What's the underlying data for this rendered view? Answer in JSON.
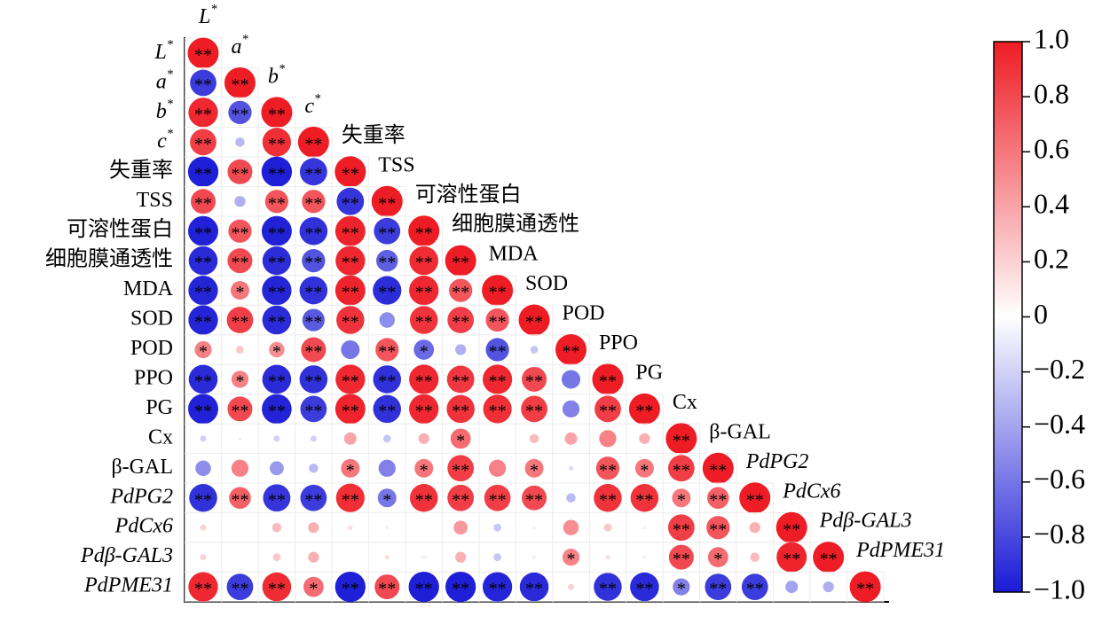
{
  "chart_data": {
    "type": "correlation",
    "labels": [
      "L*",
      "a*",
      "b*",
      "c*",
      "失重率",
      "TSS",
      "可溶性蛋白",
      "细胞膜通透性",
      "MDA",
      "SOD",
      "POD",
      "PPO",
      "PG",
      "Cx",
      "β-GAL",
      "PdPG2",
      "PdCx6",
      "Pdβ-GAL3",
      "PdPME31"
    ],
    "matrix": [
      [
        1
      ],
      [
        -0.85,
        1
      ],
      [
        0.95,
        -0.75,
        1
      ],
      [
        0.85,
        -0.3,
        0.92,
        1
      ],
      [
        -0.98,
        0.8,
        -0.98,
        -0.88,
        1
      ],
      [
        0.8,
        -0.35,
        0.75,
        0.75,
        -0.88,
        1
      ],
      [
        -0.97,
        0.75,
        -0.97,
        -0.9,
        0.97,
        -0.85,
        1
      ],
      [
        -0.93,
        0.8,
        -0.92,
        -0.75,
        0.95,
        -0.7,
        0.93,
        1
      ],
      [
        -0.95,
        0.6,
        -0.95,
        -0.9,
        0.97,
        -0.92,
        0.95,
        0.75,
        1
      ],
      [
        -0.95,
        0.85,
        -0.93,
        -0.72,
        0.9,
        -0.5,
        0.9,
        0.85,
        0.75,
        1
      ],
      [
        0.55,
        0.25,
        0.5,
        0.8,
        -0.6,
        0.75,
        -0.65,
        -0.35,
        -0.75,
        -0.25,
        1
      ],
      [
        -0.93,
        0.55,
        -0.93,
        -0.9,
        0.95,
        -0.9,
        0.95,
        0.88,
        0.95,
        0.8,
        -0.6,
        1
      ],
      [
        -0.97,
        0.8,
        -0.96,
        -0.85,
        0.97,
        -0.9,
        0.95,
        0.9,
        0.92,
        0.85,
        -0.55,
        0.85,
        1
      ],
      [
        -0.2,
        0.1,
        -0.2,
        -0.2,
        0.4,
        -0.25,
        0.35,
        0.65,
        0.05,
        0.3,
        0.4,
        0.55,
        0.35,
        1
      ],
      [
        -0.5,
        0.55,
        -0.45,
        -0.3,
        0.6,
        -0.55,
        0.6,
        0.85,
        0.55,
        0.6,
        -0.15,
        0.75,
        0.6,
        0.85,
        1
      ],
      [
        -0.9,
        0.7,
        -0.88,
        -0.85,
        0.92,
        -0.6,
        0.9,
        0.85,
        0.85,
        0.8,
        -0.3,
        0.9,
        0.9,
        0.6,
        0.7,
        1
      ],
      [
        0.2,
        0.05,
        0.3,
        0.35,
        0.15,
        0.1,
        0.05,
        0.45,
        -0.25,
        0.1,
        0.5,
        0.25,
        0.1,
        0.85,
        0.75,
        0.35,
        1
      ],
      [
        0.2,
        0.05,
        0.25,
        0.35,
        0.05,
        0.15,
        0.1,
        0.35,
        -0.25,
        -0.1,
        0.55,
        0.15,
        0.1,
        0.8,
        0.65,
        0.3,
        0.97,
        1
      ],
      [
        0.95,
        -0.85,
        0.93,
        0.65,
        -0.98,
        0.8,
        -0.98,
        -0.98,
        -0.95,
        -0.93,
        0.2,
        -0.9,
        -0.93,
        -0.55,
        -0.85,
        -0.85,
        -0.4,
        -0.35,
        1
      ]
    ],
    "significance": [
      [
        "**"
      ],
      [
        "**",
        "**"
      ],
      [
        "**",
        "**",
        "**"
      ],
      [
        "**",
        null,
        "**",
        "**"
      ],
      [
        "**",
        "**",
        "**",
        "**",
        "**"
      ],
      [
        "**",
        null,
        "**",
        "**",
        "**",
        "**"
      ],
      [
        "**",
        "**",
        "**",
        "**",
        "**",
        "**",
        "**"
      ],
      [
        "**",
        "**",
        "**",
        "**",
        "**",
        "**",
        "**",
        "**"
      ],
      [
        "**",
        "*",
        "**",
        "**",
        "**",
        "**",
        "**",
        "**",
        "**"
      ],
      [
        "**",
        "**",
        "**",
        "**",
        "**",
        null,
        "**",
        "**",
        "**",
        "**"
      ],
      [
        "*",
        null,
        "*",
        "**",
        null,
        "**",
        "*",
        null,
        "**",
        null,
        "**"
      ],
      [
        "**",
        "*",
        "**",
        "**",
        "**",
        "**",
        "**",
        "**",
        "**",
        "**",
        null,
        "**"
      ],
      [
        "**",
        "**",
        "**",
        "**",
        "**",
        "**",
        "**",
        "**",
        "**",
        "**",
        null,
        "**",
        "**"
      ],
      [
        null,
        null,
        null,
        null,
        null,
        null,
        null,
        "*",
        null,
        null,
        null,
        null,
        null,
        "**"
      ],
      [
        null,
        null,
        null,
        null,
        "*",
        null,
        "*",
        "**",
        null,
        "*",
        null,
        "**",
        "*",
        "**",
        "**"
      ],
      [
        "**",
        "**",
        "**",
        "**",
        "**",
        "*",
        "**",
        "**",
        "**",
        "**",
        null,
        "**",
        "**",
        "*",
        "**",
        "**"
      ],
      [
        null,
        null,
        null,
        null,
        null,
        null,
        null,
        null,
        null,
        null,
        null,
        null,
        null,
        "**",
        "**",
        null,
        "**"
      ],
      [
        null,
        null,
        null,
        null,
        null,
        null,
        null,
        null,
        null,
        null,
        "*",
        null,
        null,
        "**",
        "*",
        null,
        "**",
        "**"
      ],
      [
        "**",
        "**",
        "**",
        "*",
        "**",
        "**",
        "**",
        "**",
        "**",
        "**",
        null,
        "**",
        "**",
        "*",
        "**",
        "**",
        null,
        null,
        "**"
      ]
    ],
    "colors": [
      "#1a1ad6",
      "#ffffff",
      "#ee1c25"
    ],
    "ylim": [
      -1,
      1
    ],
    "yticks": [
      {
        "value": 1,
        "label": "1.0"
      },
      0.8,
      0.6,
      0.4,
      0.2,
      0,
      {
        "value": -0.2,
        "label": "−0.2"
      },
      {
        "value": -0.4,
        "label": "−0.4"
      },
      {
        "value": -0.6,
        "label": "−0.6"
      },
      {
        "value": -0.8,
        "label": "−0.8"
      },
      {
        "value": -1,
        "label": "−1.0"
      }
    ]
  }
}
